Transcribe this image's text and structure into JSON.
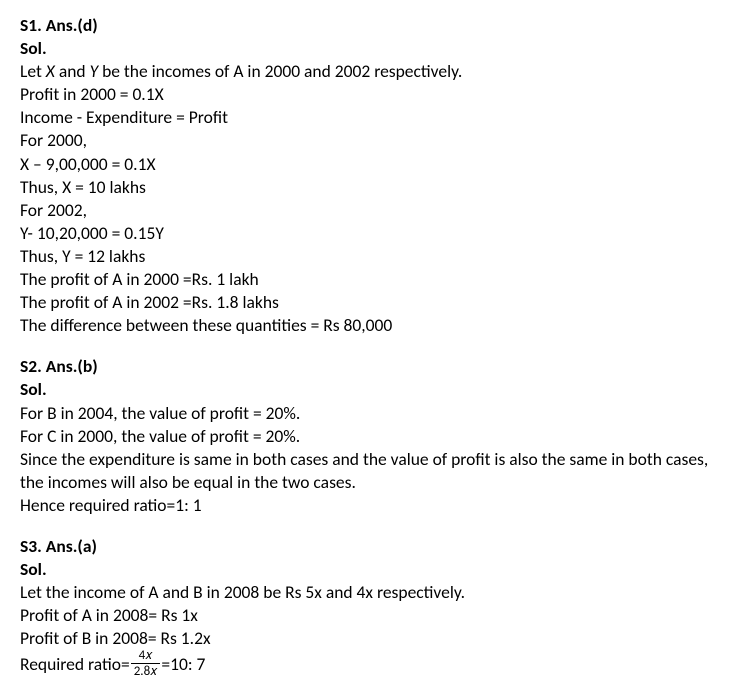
{
  "s1": {
    "heading": "S1. Ans.(d)",
    "sol": "Sol.",
    "l1a": "Let ",
    "l1x": "X",
    "l1b": " and ",
    "l1y": "Y",
    "l1c": " be the incomes of A in 2000 and 2002 respectively.",
    "l2": "Profit in 2000 = 0.1X",
    "l3": "Income - Expenditure = Profit",
    "l4": "For 2000,",
    "l5": "X – 9,00,000 = 0.1X",
    "l6": "Thus, X = 10 lakhs",
    "l7": "For 2002,",
    "l8": " Y- 10,20,000 = 0.15Y",
    "l9": " Thus, Y = 12 lakhs",
    "l10": " The profit of A in 2000 =Rs. 1 lakh",
    "l11": "The profit of A in 2002 =Rs. 1.8 lakhs",
    "l12": "The difference between these quantities = Rs 80,000"
  },
  "s2": {
    "heading": "S2. Ans.(b)",
    "sol": "Sol.",
    "l1": "For B in 2004, the value of profit = 20%.",
    "l2": "For C in 2000, the value of profit = 20%.",
    "l3": "Since the expenditure is same in both cases and the value of profit is also the same in both cases, the incomes will also be equal in the two cases.",
    "l4": "Hence required ratio=1: 1"
  },
  "s3": {
    "heading": "S3. Ans.(a)",
    "sol": "Sol.",
    "l1": "Let the income of A and B in 2008 be Rs 5x and 4x respectively.",
    "l2": "Profit of A in 2008= Rs 1x",
    "l3": "Profit of B in 2008= Rs 1.2x",
    "l4a": "Required ratio= ",
    "frac_num": "4𝑥",
    "frac_den": "2.8𝑥",
    "l4b": "=10: 7"
  }
}
